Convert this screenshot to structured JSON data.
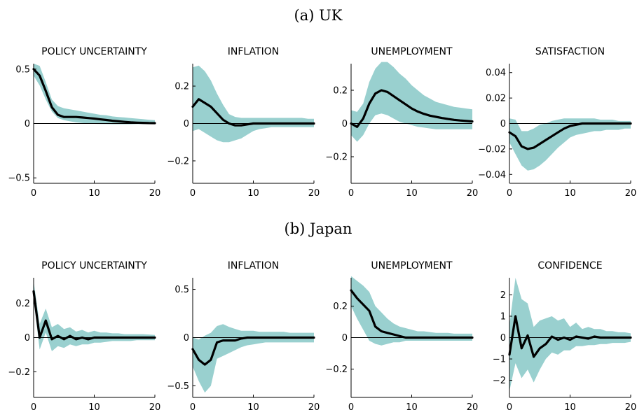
{
  "colors": {
    "band": "#99d0cf",
    "line": "#000000",
    "axis": "#000000"
  },
  "sections": [
    {
      "title": "(a) UK"
    },
    {
      "title": "(b) Japan"
    }
  ],
  "chart_data": [
    {
      "type": "area",
      "title": "POLICY UNCERTAINTY",
      "xlim": [
        0,
        20
      ],
      "ylim": [
        -0.55,
        0.55
      ],
      "yticks": [
        -0.5,
        0,
        0.5
      ],
      "ytick_labels": [
        "−0.5",
        "0",
        "0.5"
      ],
      "xticks": [
        0,
        10,
        20
      ],
      "xtick_labels": [
        "0",
        "10",
        "20"
      ],
      "x": [
        0,
        1,
        2,
        3,
        4,
        5,
        6,
        7,
        8,
        9,
        10,
        11,
        12,
        13,
        14,
        15,
        16,
        17,
        18,
        19,
        20
      ],
      "series": [
        {
          "role": "estimate",
          "values": [
            0.5,
            0.44,
            0.3,
            0.15,
            0.08,
            0.06,
            0.06,
            0.06,
            0.055,
            0.05,
            0.045,
            0.038,
            0.032,
            0.025,
            0.02,
            0.015,
            0.01,
            0.008,
            0.006,
            0.004,
            0.003
          ]
        },
        {
          "role": "lower",
          "values": [
            0.44,
            0.35,
            0.22,
            0.11,
            0.05,
            0.03,
            0.02,
            0.01,
            0.005,
            0,
            -0.003,
            -0.005,
            -0.006,
            -0.007,
            -0.007,
            -0.007,
            -0.007,
            -0.006,
            -0.006,
            -0.005,
            -0.005
          ]
        },
        {
          "role": "upper",
          "values": [
            0.55,
            0.53,
            0.38,
            0.22,
            0.16,
            0.14,
            0.13,
            0.12,
            0.11,
            0.1,
            0.09,
            0.08,
            0.075,
            0.065,
            0.06,
            0.055,
            0.05,
            0.045,
            0.04,
            0.035,
            0.03
          ]
        }
      ]
    },
    {
      "type": "area",
      "title": "INFLATION",
      "xlim": [
        0,
        20
      ],
      "ylim": [
        -0.32,
        0.32
      ],
      "yticks": [
        -0.2,
        0,
        0.2
      ],
      "ytick_labels": [
        "−0.2",
        "0",
        "0.2"
      ],
      "xticks": [
        0,
        10,
        20
      ],
      "xtick_labels": [
        "0",
        "10",
        "20"
      ],
      "x": [
        0,
        1,
        2,
        3,
        4,
        5,
        6,
        7,
        8,
        9,
        10,
        11,
        12,
        13,
        14,
        15,
        16,
        17,
        18,
        19,
        20
      ],
      "series": [
        {
          "role": "estimate",
          "values": [
            0.09,
            0.13,
            0.11,
            0.09,
            0.055,
            0.02,
            0,
            -0.01,
            -0.01,
            -0.005,
            0,
            0,
            0,
            0,
            0,
            0,
            0,
            0,
            0,
            0,
            0
          ]
        },
        {
          "role": "lower",
          "values": [
            -0.04,
            -0.03,
            -0.05,
            -0.07,
            -0.09,
            -0.1,
            -0.1,
            -0.09,
            -0.08,
            -0.06,
            -0.04,
            -0.03,
            -0.025,
            -0.02,
            -0.02,
            -0.02,
            -0.02,
            -0.02,
            -0.02,
            -0.02,
            -0.02
          ]
        },
        {
          "role": "upper",
          "values": [
            0.3,
            0.31,
            0.28,
            0.23,
            0.16,
            0.1,
            0.05,
            0.035,
            0.03,
            0.03,
            0.03,
            0.03,
            0.03,
            0.03,
            0.03,
            0.03,
            0.03,
            0.03,
            0.03,
            0.025,
            0.025
          ]
        }
      ]
    },
    {
      "type": "area",
      "title": "UNEMPLOYMENT",
      "xlim": [
        0,
        20
      ],
      "ylim": [
        -0.36,
        0.36
      ],
      "yticks": [
        -0.2,
        0,
        0.2
      ],
      "ytick_labels": [
        "−0.2",
        "0",
        "0.2"
      ],
      "xticks": [
        0,
        10,
        20
      ],
      "xtick_labels": [
        "0",
        "10",
        "20"
      ],
      "x": [
        0,
        1,
        2,
        3,
        4,
        5,
        6,
        7,
        8,
        9,
        10,
        11,
        12,
        13,
        14,
        15,
        16,
        17,
        18,
        19,
        20
      ],
      "series": [
        {
          "role": "estimate",
          "values": [
            0,
            -0.02,
            0.03,
            0.12,
            0.18,
            0.2,
            0.19,
            0.165,
            0.14,
            0.115,
            0.09,
            0.072,
            0.058,
            0.047,
            0.04,
            0.033,
            0.027,
            0.022,
            0.018,
            0.015,
            0.012
          ]
        },
        {
          "role": "lower",
          "values": [
            -0.07,
            -0.11,
            -0.07,
            0,
            0.05,
            0.06,
            0.05,
            0.03,
            0.01,
            0,
            -0.01,
            -0.02,
            -0.025,
            -0.03,
            -0.035,
            -0.035,
            -0.035,
            -0.035,
            -0.035,
            -0.035,
            -0.035
          ]
        },
        {
          "role": "upper",
          "values": [
            0.08,
            0.07,
            0.12,
            0.25,
            0.33,
            0.37,
            0.37,
            0.34,
            0.3,
            0.27,
            0.23,
            0.2,
            0.17,
            0.15,
            0.13,
            0.12,
            0.11,
            0.1,
            0.095,
            0.09,
            0.085
          ]
        }
      ]
    },
    {
      "type": "area",
      "title": "SATISFACTION",
      "xlim": [
        0,
        20
      ],
      "ylim": [
        -0.047,
        0.047
      ],
      "yticks": [
        -0.04,
        -0.02,
        0,
        0.02,
        0.04
      ],
      "ytick_labels": [
        "−0.04",
        "−0.02",
        "0",
        "0.02",
        "0.04"
      ],
      "xticks": [
        0,
        10,
        20
      ],
      "xtick_labels": [
        "0",
        "10",
        "20"
      ],
      "x": [
        0,
        1,
        2,
        3,
        4,
        5,
        6,
        7,
        8,
        9,
        10,
        11,
        12,
        13,
        14,
        15,
        16,
        17,
        18,
        19,
        20
      ],
      "series": [
        {
          "role": "estimate",
          "values": [
            -0.007,
            -0.01,
            -0.018,
            -0.02,
            -0.019,
            -0.016,
            -0.013,
            -0.01,
            -0.007,
            -0.004,
            -0.002,
            -0.001,
            0,
            0,
            0,
            0,
            0,
            0,
            0,
            0,
            0
          ]
        },
        {
          "role": "lower",
          "values": [
            -0.015,
            -0.024,
            -0.033,
            -0.037,
            -0.036,
            -0.033,
            -0.029,
            -0.024,
            -0.019,
            -0.015,
            -0.011,
            -0.009,
            -0.008,
            -0.007,
            -0.006,
            -0.006,
            -0.005,
            -0.005,
            -0.005,
            -0.004,
            -0.004
          ]
        },
        {
          "role": "upper",
          "values": [
            0.004,
            0.003,
            -0.006,
            -0.006,
            -0.004,
            -0.001,
            0,
            0.002,
            0.003,
            0.004,
            0.004,
            0.004,
            0.004,
            0.004,
            0.004,
            0.003,
            0.003,
            0.003,
            0.002,
            0.002,
            0.002
          ]
        }
      ]
    },
    {
      "type": "area",
      "title": "POLICY UNCERTAINTY",
      "xlim": [
        0,
        20
      ],
      "ylim": [
        -0.35,
        0.35
      ],
      "yticks": [
        -0.2,
        0,
        0.2
      ],
      "ytick_labels": [
        "−0.2",
        "0",
        "0.2"
      ],
      "xticks": [
        0,
        10,
        20
      ],
      "xtick_labels": [
        "0",
        "10",
        "20"
      ],
      "x": [
        0,
        1,
        2,
        3,
        4,
        5,
        6,
        7,
        8,
        9,
        10,
        11,
        12,
        13,
        14,
        15,
        16,
        17,
        18,
        19,
        20
      ],
      "series": [
        {
          "role": "estimate",
          "values": [
            0.27,
            0,
            0.1,
            -0.01,
            0.01,
            -0.01,
            0.01,
            -0.01,
            0,
            -0.01,
            0,
            0,
            0,
            0,
            0,
            0,
            0,
            0,
            0,
            0,
            0
          ]
        },
        {
          "role": "lower",
          "values": [
            0.22,
            -0.07,
            0.03,
            -0.08,
            -0.05,
            -0.06,
            -0.04,
            -0.05,
            -0.04,
            -0.04,
            -0.03,
            -0.03,
            -0.025,
            -0.02,
            -0.02,
            -0.02,
            -0.02,
            -0.015,
            -0.015,
            -0.015,
            -0.015
          ]
        },
        {
          "role": "upper",
          "values": [
            0.33,
            0.08,
            0.17,
            0.06,
            0.08,
            0.05,
            0.06,
            0.035,
            0.045,
            0.03,
            0.04,
            0.03,
            0.03,
            0.025,
            0.025,
            0.02,
            0.02,
            0.02,
            0.02,
            0.018,
            0.015
          ]
        }
      ]
    },
    {
      "type": "area",
      "title": "INFLATION",
      "xlim": [
        0,
        20
      ],
      "ylim": [
        -0.62,
        0.62
      ],
      "yticks": [
        -0.5,
        0,
        0.5
      ],
      "ytick_labels": [
        "−0.5",
        "0",
        "0.5"
      ],
      "xticks": [
        0,
        10,
        20
      ],
      "xtick_labels": [
        "0",
        "10",
        "20"
      ],
      "x": [
        0,
        1,
        2,
        3,
        4,
        5,
        6,
        7,
        8,
        9,
        10,
        11,
        12,
        13,
        14,
        15,
        16,
        17,
        18,
        19,
        20
      ],
      "series": [
        {
          "role": "estimate",
          "values": [
            -0.12,
            -0.23,
            -0.28,
            -0.23,
            -0.05,
            -0.03,
            -0.03,
            -0.03,
            -0.01,
            0,
            0,
            0,
            0,
            0,
            0,
            0,
            0,
            0,
            0,
            0,
            0
          ]
        },
        {
          "role": "lower",
          "values": [
            -0.3,
            -0.45,
            -0.57,
            -0.5,
            -0.22,
            -0.19,
            -0.16,
            -0.13,
            -0.1,
            -0.08,
            -0.07,
            -0.06,
            -0.05,
            -0.05,
            -0.05,
            -0.05,
            -0.05,
            -0.05,
            -0.05,
            -0.05,
            -0.05
          ]
        },
        {
          "role": "upper",
          "values": [
            0,
            -0.02,
            0.02,
            0.05,
            0.12,
            0.14,
            0.11,
            0.09,
            0.07,
            0.07,
            0.07,
            0.06,
            0.06,
            0.06,
            0.06,
            0.06,
            0.05,
            0.05,
            0.05,
            0.05,
            0.05
          ]
        }
      ]
    },
    {
      "type": "area",
      "title": "UNEMPLOYMENT",
      "xlim": [
        0,
        20
      ],
      "ylim": [
        -0.38,
        0.38
      ],
      "yticks": [
        -0.2,
        0,
        0.2
      ],
      "ytick_labels": [
        "−0.2",
        "0",
        "0.2"
      ],
      "xticks": [
        0,
        10,
        20
      ],
      "xtick_labels": [
        "0",
        "10",
        "20"
      ],
      "x": [
        0,
        1,
        2,
        3,
        4,
        5,
        6,
        7,
        8,
        9,
        10,
        11,
        12,
        13,
        14,
        15,
        16,
        17,
        18,
        19,
        20
      ],
      "series": [
        {
          "role": "estimate",
          "values": [
            0.3,
            0.25,
            0.21,
            0.17,
            0.07,
            0.04,
            0.03,
            0.02,
            0.01,
            0,
            0,
            0,
            0,
            0,
            0,
            0,
            0,
            0,
            0,
            0,
            0
          ]
        },
        {
          "role": "lower",
          "values": [
            0.2,
            0.12,
            0.05,
            -0.02,
            -0.04,
            -0.05,
            -0.04,
            -0.03,
            -0.03,
            -0.02,
            -0.02,
            -0.02,
            -0.02,
            -0.02,
            -0.02,
            -0.02,
            -0.02,
            -0.02,
            -0.02,
            -0.02,
            -0.02
          ]
        },
        {
          "role": "upper",
          "values": [
            0.39,
            0.36,
            0.33,
            0.29,
            0.2,
            0.16,
            0.12,
            0.09,
            0.07,
            0.06,
            0.05,
            0.04,
            0.04,
            0.035,
            0.03,
            0.03,
            0.03,
            0.025,
            0.025,
            0.025,
            0.025
          ]
        }
      ]
    },
    {
      "type": "area",
      "title": "CONFIDENCE",
      "xlim": [
        0,
        20
      ],
      "ylim": [
        -2.8,
        2.8
      ],
      "yticks": [
        -2,
        -1,
        0,
        1,
        2
      ],
      "ytick_labels": [
        "−2",
        "−1",
        "0",
        "1",
        "2"
      ],
      "xticks": [
        0,
        10,
        20
      ],
      "xtick_labels": [
        "0",
        "10",
        "20"
      ],
      "x": [
        0,
        1,
        2,
        3,
        4,
        5,
        6,
        7,
        8,
        9,
        10,
        11,
        12,
        13,
        14,
        15,
        16,
        17,
        18,
        19,
        20
      ],
      "series": [
        {
          "role": "estimate",
          "values": [
            -0.8,
            1.0,
            -0.5,
            0.1,
            -0.9,
            -0.5,
            -0.3,
            0.05,
            -0.1,
            0,
            -0.1,
            0.05,
            0,
            -0.05,
            0.05,
            0,
            0,
            0,
            0,
            0,
            0
          ]
        },
        {
          "role": "lower",
          "values": [
            -2.5,
            -1.2,
            -1.9,
            -1.5,
            -2.1,
            -1.5,
            -1.0,
            -0.7,
            -0.8,
            -0.6,
            -0.6,
            -0.4,
            -0.4,
            -0.35,
            -0.35,
            -0.3,
            -0.3,
            -0.25,
            -0.25,
            -0.25,
            -0.2
          ]
        },
        {
          "role": "upper",
          "values": [
            0.6,
            2.8,
            1.8,
            1.6,
            0.5,
            0.8,
            0.9,
            1.0,
            0.8,
            0.9,
            0.5,
            0.7,
            0.4,
            0.5,
            0.4,
            0.4,
            0.3,
            0.3,
            0.25,
            0.25,
            0.2
          ]
        }
      ]
    }
  ]
}
